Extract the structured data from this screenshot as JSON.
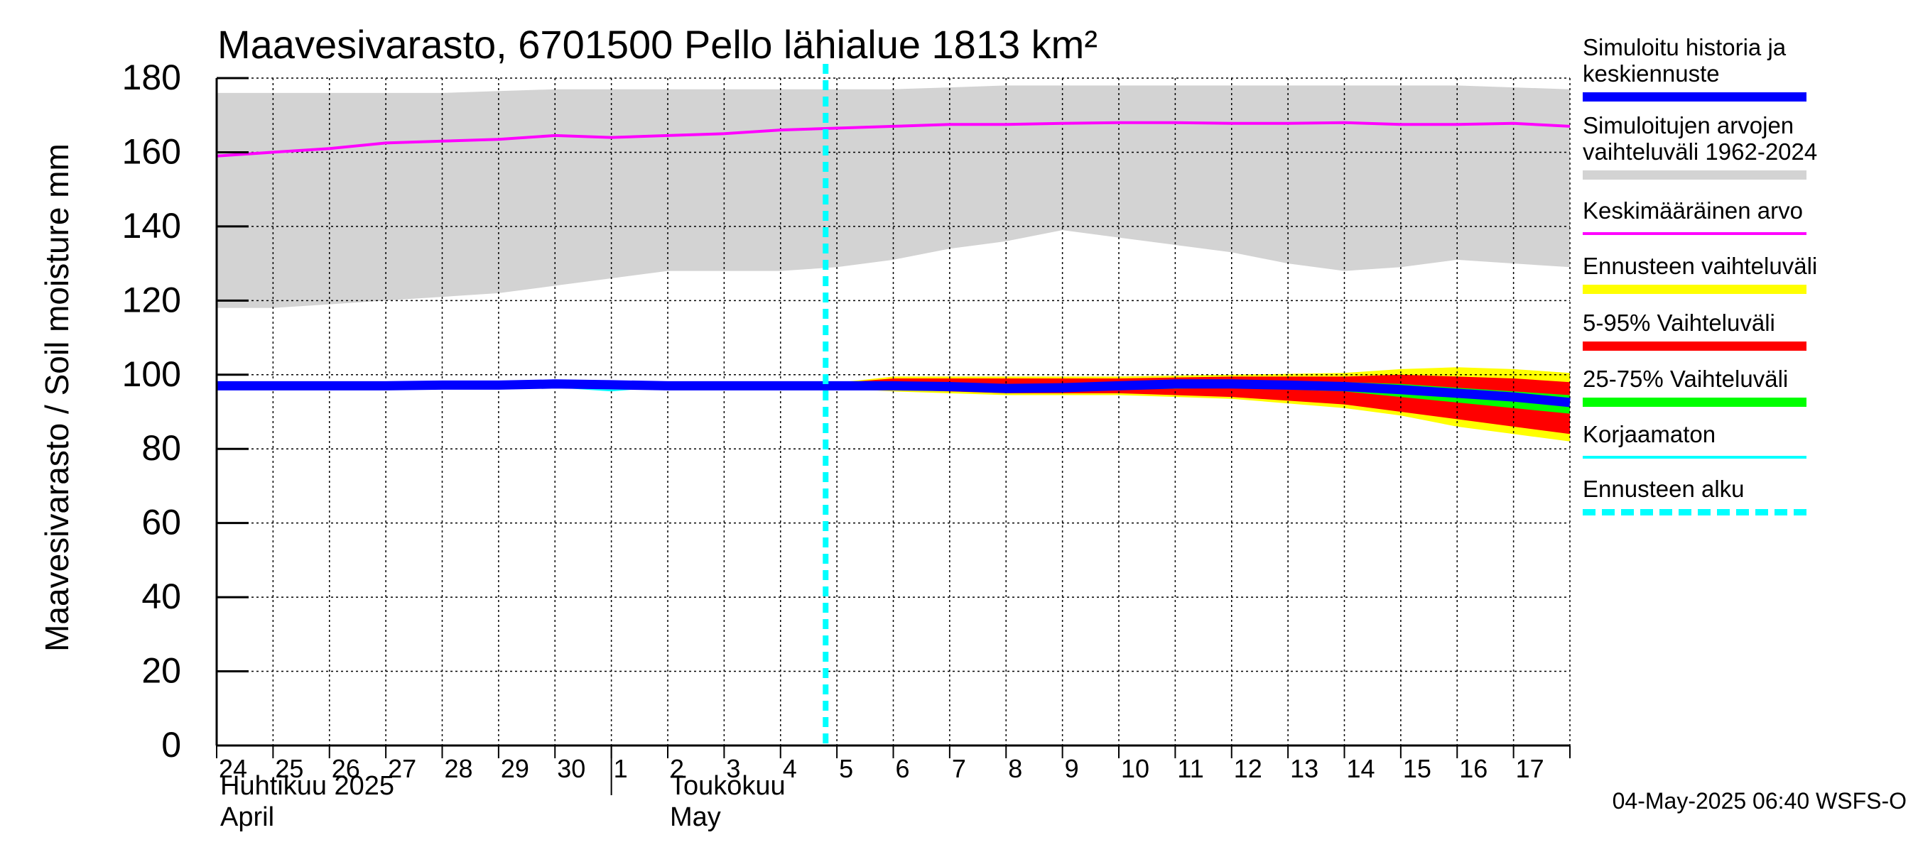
{
  "title": "Maavesivarasto, 6701500 Pello lähialue 1813 km²",
  "ylabel": "Maavesivarasto / Soil moisture   mm",
  "timestamp": "04-May-2025 06:40 WSFS-O",
  "month_labels": [
    {
      "line1": "Huhtikuu  2025",
      "line2": "April"
    },
    {
      "line1": "Toukokuu",
      "line2": "May"
    }
  ],
  "legend": [
    {
      "text": "Simuloitu historia ja\nkeskiennuste",
      "color": "#0000ff",
      "style": "thick"
    },
    {
      "text": "Simuloitujen arvojen\nvaihteluväli 1962-2024",
      "color": "#d3d3d3",
      "style": "thick"
    },
    {
      "text": "Keskimääräinen arvo",
      "color": "#ff00ff",
      "style": "thin"
    },
    {
      "text": "Ennusteen vaihteluväli",
      "color": "#ffff00",
      "style": "thick"
    },
    {
      "text": "5-95% Vaihteluväli",
      "color": "#ff0000",
      "style": "thick"
    },
    {
      "text": "25-75% Vaihteluväli",
      "color": "#00ff00",
      "style": "thick"
    },
    {
      "text": "Korjaamaton",
      "color": "#00ffff",
      "style": "thin"
    },
    {
      "text": "Ennusteen alku",
      "color": "#00ffff",
      "style": "dashed"
    }
  ],
  "chart_data": {
    "type": "line",
    "title": "Maavesivarasto, 6701500 Pello lähialue 1813 km²",
    "ylabel": "Maavesivarasto / Soil moisture   mm",
    "xlabel": "",
    "ylim": [
      0,
      180
    ],
    "yticks": [
      0,
      20,
      40,
      60,
      80,
      100,
      120,
      140,
      160,
      180
    ],
    "x_day_index_range": [
      0,
      24
    ],
    "x_tick_labels": [
      "24",
      "25",
      "26",
      "27",
      "28",
      "29",
      "30",
      "1",
      "2",
      "3",
      "4",
      "5",
      "6",
      "7",
      "8",
      "9",
      "10",
      "11",
      "12",
      "13",
      "14",
      "15",
      "16",
      "17"
    ],
    "forecast_start_day_index": 10.8,
    "grid": true,
    "series": [
      {
        "name": "Simuloitujen arvojen vaihteluväli 1962-2024 (max)",
        "color": "#d3d3d3",
        "x": [
          0,
          2,
          4,
          6,
          8,
          10,
          12,
          14,
          16,
          18,
          20,
          22,
          24
        ],
        "values": [
          176,
          176,
          176,
          177,
          177,
          177,
          177,
          178,
          178,
          178,
          178,
          178,
          177
        ]
      },
      {
        "name": "Simuloitujen arvojen vaihteluväli 1962-2024 (min)",
        "color": "#d3d3d3",
        "x": [
          0,
          1,
          2,
          3,
          4,
          5,
          6,
          7,
          8,
          9,
          10,
          11,
          12,
          13,
          14,
          15,
          16,
          17,
          18,
          19,
          20,
          21,
          22,
          23,
          24
        ],
        "values": [
          118,
          118,
          119,
          120,
          121,
          122,
          124,
          126,
          128,
          128,
          128,
          129,
          131,
          134,
          136,
          139,
          137,
          135,
          133,
          130,
          128,
          129,
          131,
          130,
          129
        ]
      },
      {
        "name": "Keskimääräinen arvo",
        "color": "#ff00ff",
        "x": [
          0,
          1,
          2,
          3,
          4,
          5,
          6,
          7,
          8,
          9,
          10,
          11,
          12,
          13,
          14,
          15,
          16,
          17,
          18,
          19,
          20,
          21,
          22,
          23,
          24
        ],
        "values": [
          159,
          160,
          161,
          162.5,
          163,
          163.5,
          164.5,
          164,
          164.5,
          165,
          166,
          166.5,
          167,
          167.5,
          167.5,
          167.8,
          168,
          168,
          167.8,
          167.8,
          168,
          167.5,
          167.5,
          167.8,
          167
        ]
      },
      {
        "name": "Ennusteen vaihteluväli (max)",
        "color": "#ffff00",
        "x": [
          10.8,
          12,
          14,
          16,
          18,
          20,
          21,
          22,
          23,
          24
        ],
        "values": [
          97.5,
          99.5,
          99.5,
          99.5,
          100,
          100.5,
          101.5,
          102,
          101.5,
          100.5
        ]
      },
      {
        "name": "Ennusteen vaihteluväli (min)",
        "color": "#ffff00",
        "x": [
          10.8,
          12,
          14,
          16,
          18,
          20,
          21,
          22,
          23,
          24
        ],
        "values": [
          96.5,
          95.5,
          94.5,
          94.5,
          93.5,
          91,
          89,
          86,
          84,
          82
        ]
      },
      {
        "name": "5-95% Vaihteluväli (max)",
        "color": "#ff0000",
        "x": [
          10.8,
          12,
          14,
          16,
          18,
          20,
          21,
          22,
          23,
          24
        ],
        "values": [
          97.5,
          99,
          99,
          99,
          99.5,
          99.5,
          100,
          99.5,
          99,
          98
        ]
      },
      {
        "name": "5-95% Vaihteluväli (min)",
        "color": "#ff0000",
        "x": [
          10.8,
          12,
          14,
          16,
          18,
          20,
          21,
          22,
          23,
          24
        ],
        "values": [
          96.5,
          96,
          95,
          95,
          94,
          92,
          90,
          88,
          86,
          84
        ]
      },
      {
        "name": "25-75% Vaihteluväli (max)",
        "color": "#00ff00",
        "x": [
          10.8,
          12,
          14,
          16,
          18,
          20,
          21,
          22,
          23,
          24
        ],
        "values": [
          97.2,
          97.8,
          97.5,
          97.5,
          98,
          98,
          97.5,
          96.5,
          95.5,
          94.5
        ]
      },
      {
        "name": "25-75% Vaihteluväli (min)",
        "color": "#00ff00",
        "x": [
          10.8,
          12,
          14,
          16,
          18,
          20,
          21,
          22,
          23,
          24
        ],
        "values": [
          96.8,
          96.5,
          96,
          96,
          96.5,
          95.5,
          94,
          92.5,
          91,
          89.5
        ]
      },
      {
        "name": "Korjaamaton",
        "color": "#00ffff",
        "x": [
          0,
          2,
          4,
          6,
          7,
          8,
          9,
          10,
          10.8
        ],
        "values": [
          96.5,
          96.5,
          96.8,
          97,
          96,
          97.2,
          97,
          97,
          97
        ]
      },
      {
        "name": "Simuloitu historia ja keskiennuste",
        "color": "#0000ff",
        "x": [
          0,
          1,
          2,
          3,
          4,
          5,
          6,
          7,
          8,
          9,
          10,
          10.8,
          12,
          13,
          14,
          15,
          16,
          17,
          18,
          19,
          20,
          21,
          22,
          23,
          24
        ],
        "values": [
          97,
          97,
          97,
          97,
          97.2,
          97.2,
          97.5,
          97.3,
          97,
          97,
          97,
          97,
          97,
          96.8,
          96.3,
          96.5,
          97,
          97.5,
          97.5,
          97.2,
          96.8,
          96,
          95,
          94,
          92.5
        ]
      }
    ]
  }
}
